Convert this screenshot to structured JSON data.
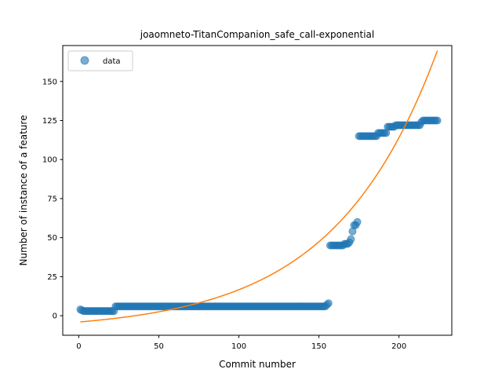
{
  "chart_data": {
    "type": "scatter",
    "title": "joaomneto-TitanCompanion_safe_call-exponential",
    "xlabel": "Commit number",
    "ylabel": "Number of instance of a feature",
    "xlim": [
      -10,
      233
    ],
    "ylim": [
      -12.5,
      173
    ],
    "xticks": [
      0,
      50,
      100,
      150,
      200
    ],
    "yticks": [
      0,
      25,
      50,
      75,
      100,
      125,
      150
    ],
    "legend": {
      "position": "top-left",
      "entries": [
        "data"
      ]
    },
    "grid": false,
    "colors": {
      "data": "#1f77b4",
      "fit": "#ff7f0e"
    },
    "series": [
      {
        "name": "data",
        "kind": "scatter",
        "segments": [
          {
            "x_from": 1,
            "x_to": 1,
            "y": 4
          },
          {
            "x_from": 2,
            "x_to": 2,
            "y": 3.5
          },
          {
            "x_from": 3,
            "x_to": 22,
            "y": 3
          },
          {
            "x_from": 23,
            "x_to": 154,
            "y": 6
          },
          {
            "x_from": 155,
            "x_to": 155,
            "y": 7
          },
          {
            "x_from": 156,
            "x_to": 156,
            "y": 8
          },
          {
            "x_from": 157,
            "x_to": 165,
            "y": 45
          },
          {
            "x_from": 166,
            "x_to": 168,
            "y": 46
          },
          {
            "x_from": 169,
            "x_to": 169,
            "y": 47
          },
          {
            "x_from": 170,
            "x_to": 170,
            "y": 49
          },
          {
            "x_from": 171,
            "x_to": 171,
            "y": 54
          },
          {
            "x_from": 172,
            "x_to": 172,
            "y": 58
          },
          {
            "x_from": 173,
            "x_to": 173,
            "y": 58
          },
          {
            "x_from": 174,
            "x_to": 174,
            "y": 60
          },
          {
            "x_from": 175,
            "x_to": 186,
            "y": 115
          },
          {
            "x_from": 187,
            "x_to": 192,
            "y": 117
          },
          {
            "x_from": 193,
            "x_to": 197,
            "y": 121
          },
          {
            "x_from": 198,
            "x_to": 213,
            "y": 122
          },
          {
            "x_from": 214,
            "x_to": 214,
            "y": 124
          },
          {
            "x_from": 215,
            "x_to": 224,
            "y": 125
          }
        ]
      },
      {
        "name": "fit",
        "kind": "line",
        "model": "a*exp(b*x)+c",
        "params": {
          "a": 5.57,
          "b": 0.0155,
          "c": -9.6
        },
        "x_range": [
          1,
          224
        ]
      }
    ]
  }
}
